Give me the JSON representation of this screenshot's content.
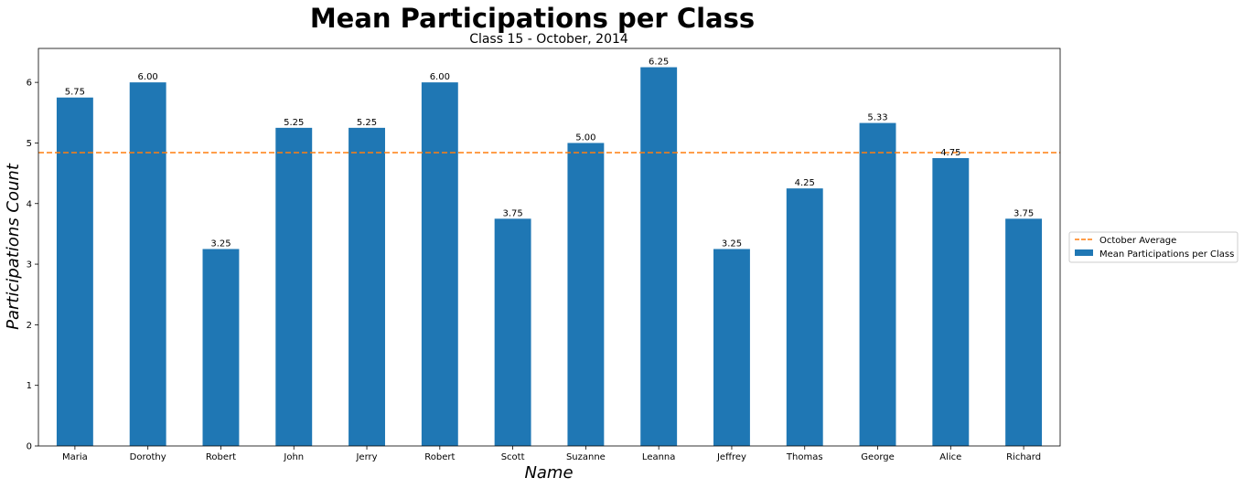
{
  "chart_data": {
    "type": "bar",
    "title": "Mean Participations per Class",
    "subtitle": "Class 15 - October, 2014",
    "xlabel": "Name",
    "ylabel": "Participations Count",
    "categories": [
      "Maria",
      "Dorothy",
      "Robert",
      "John",
      "Jerry",
      "Robert",
      "Scott",
      "Suzanne",
      "Leanna",
      "Jeffrey",
      "Thomas",
      "George",
      "Alice",
      "Richard"
    ],
    "series": [
      {
        "name": "Mean Participations per Class",
        "values": [
          5.75,
          6.0,
          3.25,
          5.25,
          5.25,
          6.0,
          3.75,
          5.0,
          6.25,
          3.25,
          4.25,
          5.33,
          4.75,
          3.75
        ],
        "labels": [
          "5.75",
          "6.00",
          "3.25",
          "5.25",
          "5.25",
          "6.00",
          "3.75",
          "5.00",
          "6.25",
          "3.25",
          "4.25",
          "5.33",
          "4.75",
          "3.75"
        ],
        "color": "#1f77b4"
      }
    ],
    "reference_line": {
      "name": "October Average",
      "value": 4.84,
      "color": "#ff7f0e",
      "style": "dashed"
    },
    "ylim": [
      0,
      6.56
    ],
    "yticks": [
      0,
      1,
      2,
      3,
      4,
      5,
      6
    ],
    "grid": false,
    "legend": {
      "placement": "outside-right",
      "entries": [
        "October Average",
        "Mean Participations per Class"
      ]
    }
  }
}
